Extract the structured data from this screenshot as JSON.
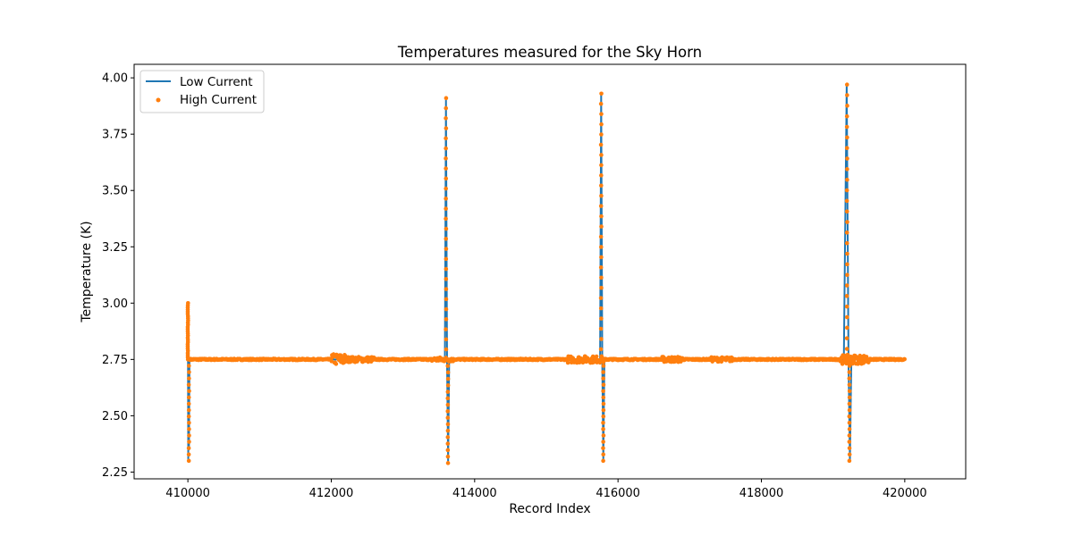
{
  "chart_data": {
    "type": "line",
    "title": "Temperatures measured for the Sky Horn",
    "xlabel": "Record Index",
    "ylabel": "Temperature (K)",
    "xlim": [
      409250,
      420850
    ],
    "ylim": [
      2.22,
      4.06
    ],
    "xticks": [
      410000,
      412000,
      414000,
      416000,
      418000,
      420000
    ],
    "yticks": [
      2.25,
      2.5,
      2.75,
      3.0,
      3.25,
      3.5,
      3.75,
      4.0
    ],
    "ytick_format": "2dp",
    "grid": false,
    "legend": {
      "placement": "top-left"
    },
    "baseline": 2.75,
    "series": [
      {
        "name": "Low Current",
        "style": "line",
        "color": "#1f77b4",
        "points": [
          [
            410000,
            3.0
          ],
          [
            410005,
            2.3
          ],
          [
            410010,
            2.95
          ],
          [
            410015,
            2.35
          ],
          [
            410022,
            2.75
          ],
          [
            412000,
            2.75
          ],
          [
            413585,
            2.75
          ],
          [
            413600,
            3.9
          ],
          [
            413615,
            2.75
          ],
          [
            413630,
            2.3
          ],
          [
            413645,
            2.75
          ],
          [
            415750,
            2.75
          ],
          [
            415765,
            3.93
          ],
          [
            415780,
            2.75
          ],
          [
            415795,
            2.3
          ],
          [
            415810,
            2.75
          ],
          [
            419150,
            2.75
          ],
          [
            419190,
            3.97
          ],
          [
            419215,
            2.75
          ],
          [
            419235,
            2.3
          ],
          [
            419255,
            2.75
          ],
          [
            420000,
            2.75
          ]
        ]
      },
      {
        "name": "High Current",
        "style": "scatter",
        "color": "#ff7f0e",
        "baseline_noise": [
          [
            412000,
            412200,
            0.025
          ],
          [
            412200,
            412600,
            0.012
          ],
          [
            413400,
            413700,
            0.01
          ],
          [
            415300,
            415800,
            0.015
          ],
          [
            416600,
            416900,
            0.012
          ],
          [
            417300,
            417600,
            0.01
          ],
          [
            419100,
            419500,
            0.02
          ]
        ],
        "spikes": [
          {
            "x": 410000,
            "peak": 3.0,
            "trough": 2.3,
            "width": 25
          },
          {
            "x": 413600,
            "peak": 3.91,
            "trough": 2.29,
            "width": 45
          },
          {
            "x": 415765,
            "peak": 3.93,
            "trough": 2.3,
            "width": 50
          },
          {
            "x": 419195,
            "peak": 3.97,
            "trough": 2.3,
            "width": 55
          }
        ]
      }
    ]
  }
}
